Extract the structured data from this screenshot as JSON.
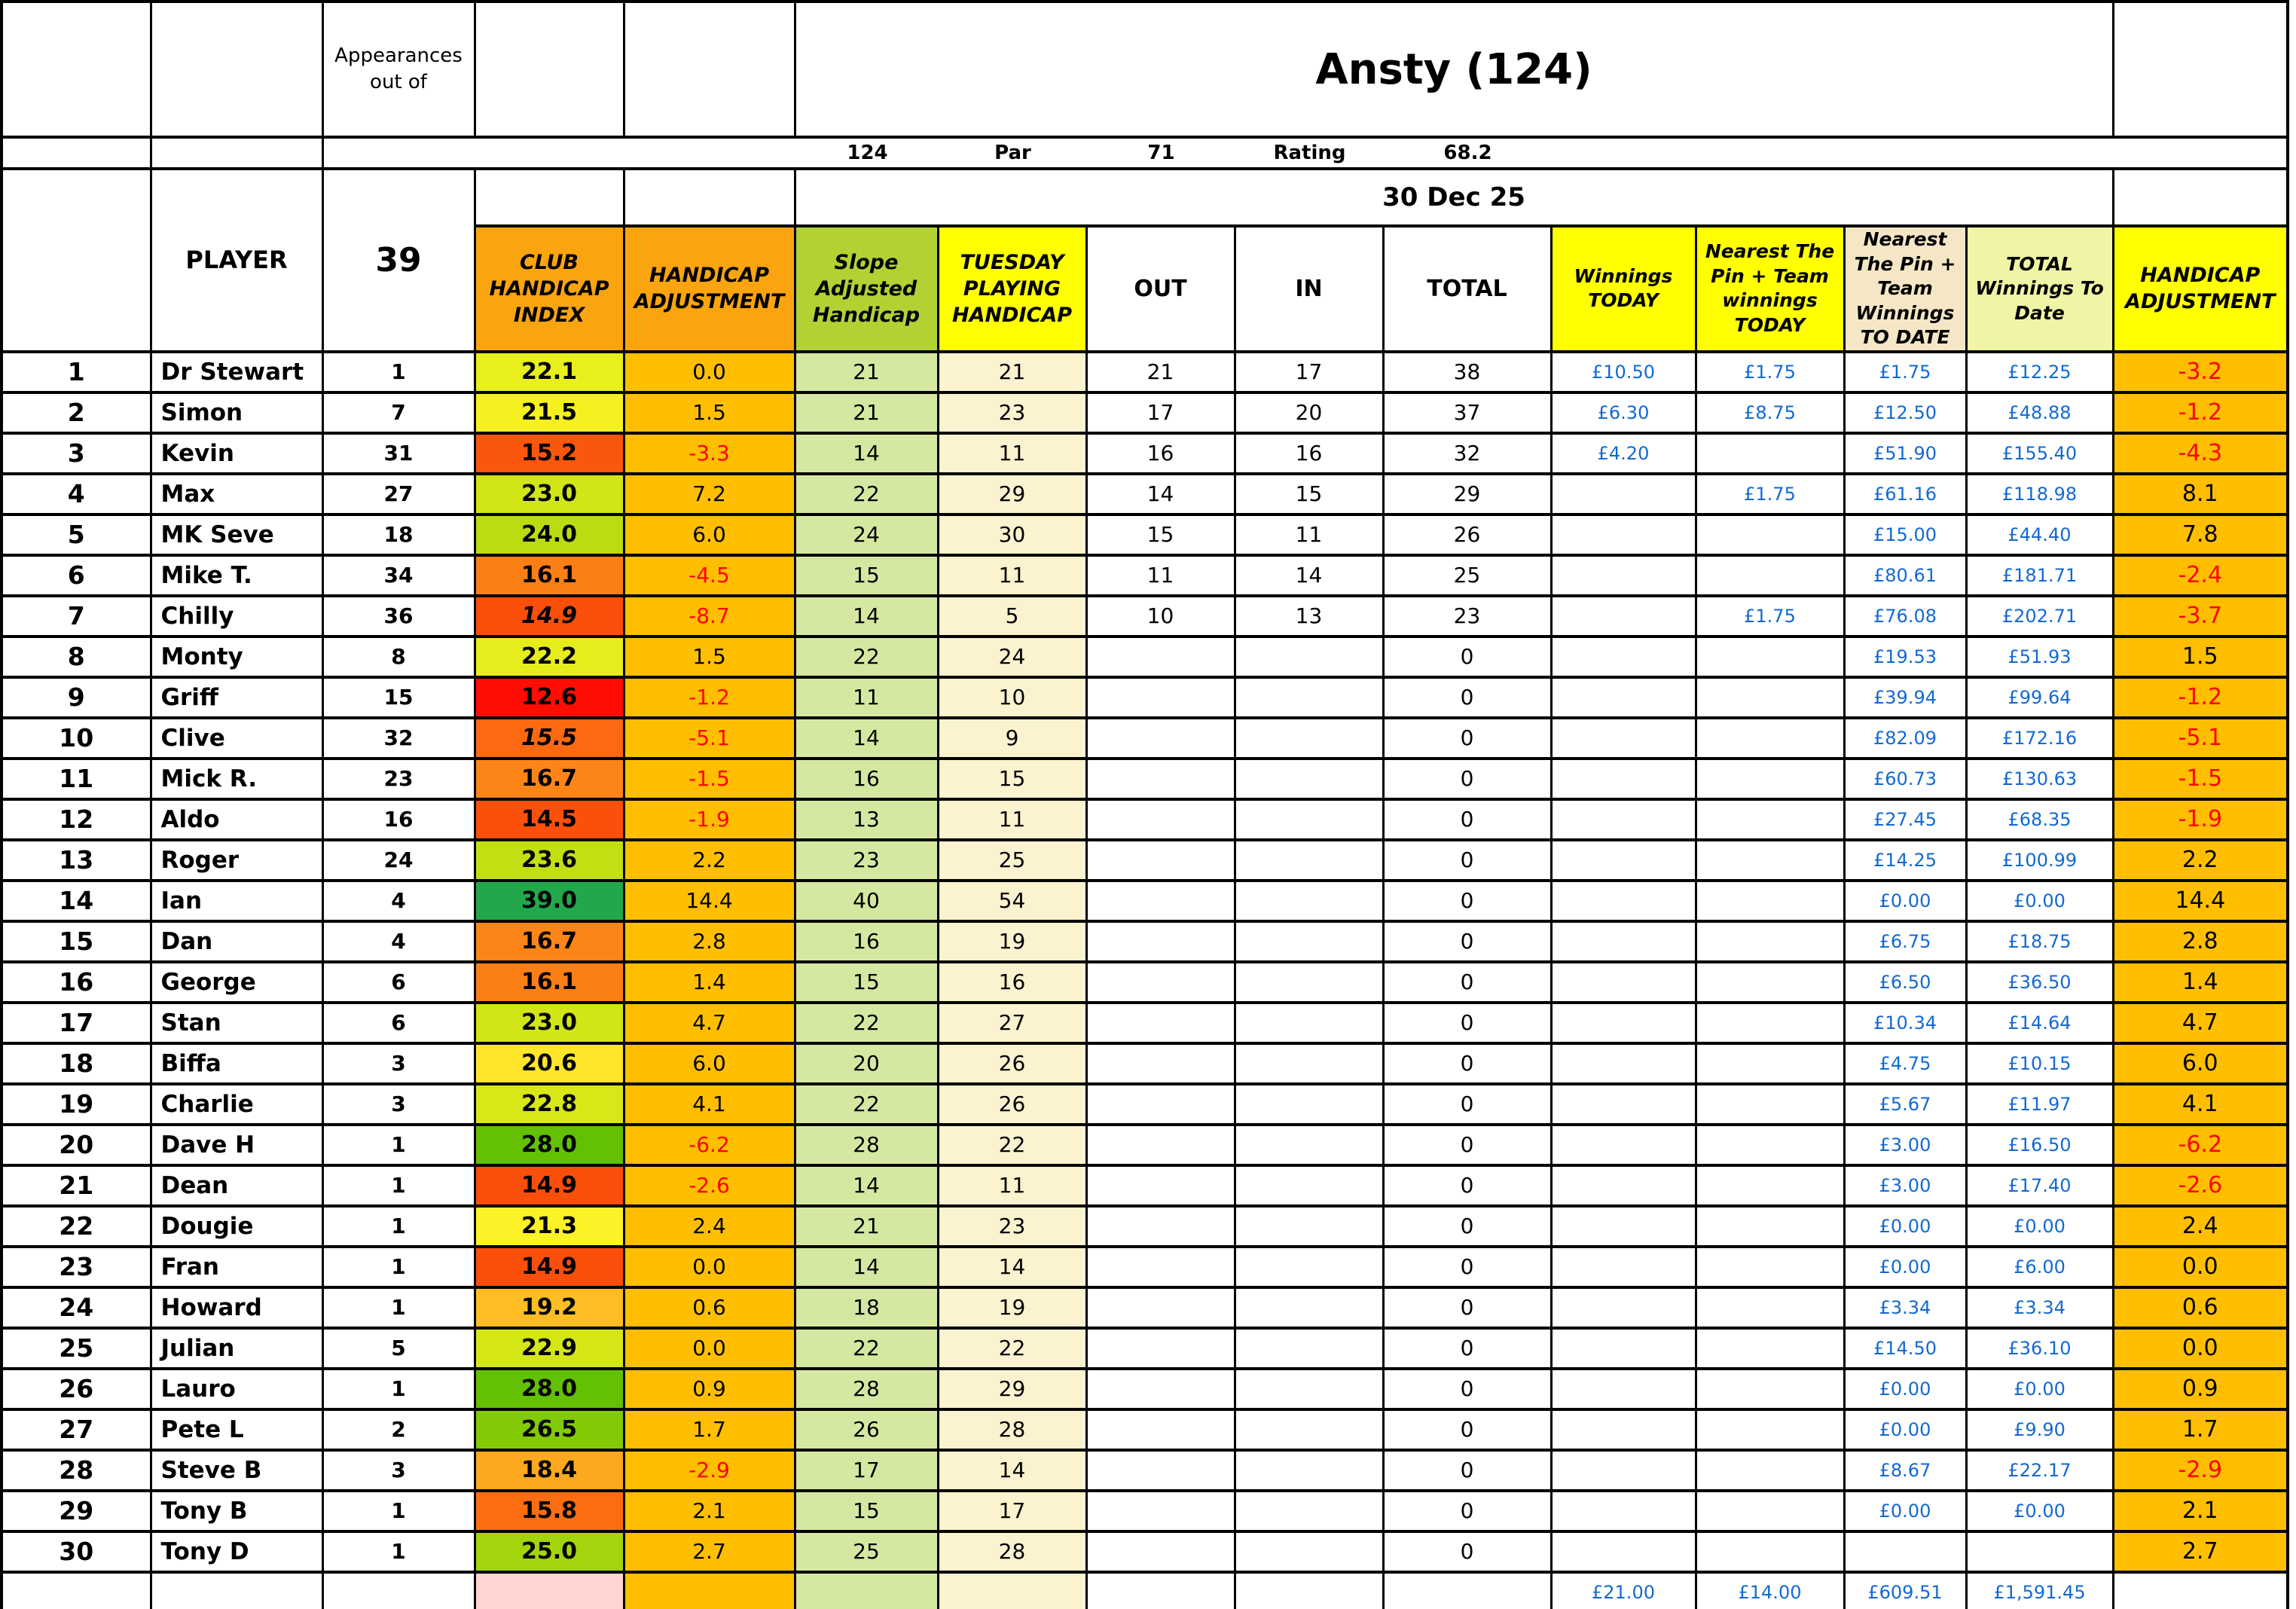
{
  "sheet": {
    "title": "Ansty (124)",
    "date": "30 Dec 25",
    "appearances_label": "Appearances out of",
    "appearances_total": "39",
    "course_info": {
      "slope": "124",
      "par_label": "Par",
      "par": "71",
      "rating_label": "Rating",
      "rating": "68.2"
    }
  },
  "headers": {
    "player": "PLAYER",
    "club_handicap_index": "CLUB HANDICAP INDEX",
    "handicap_adjustment": "HANDICAP ADJUSTMENT",
    "slope_adjusted": "Slope Adjusted Handicap",
    "tuesday_playing": "TUESDAY PLAYING HANDICAP",
    "out": "OUT",
    "in": "IN",
    "total": "TOTAL",
    "winnings_today": "Winnings TODAY",
    "nearest_pin_today": "Nearest The Pin + Team winnings TODAY",
    "nearest_pin_to_date": "Nearest The Pin + Team Winnings TO DATE",
    "total_winnings_to_date": "TOTAL Winnings To Date",
    "handicap_adjustment_cum": "HANDICAP ADJUSTMENT"
  },
  "colors": {
    "money_text": "#1269D3",
    "negative_text": "#FE0000",
    "orange_header": "#FAA50F",
    "gold_cell": "#FFBF00",
    "slope_header": "#B2D234",
    "slope_cell": "#D5E8A2",
    "yellow_header": "#FFFF00",
    "tuesday_cell": "#FBF2CF",
    "wheat_header": "#F5E7C6",
    "pale_yellow_header": "#F0F5A5",
    "pink_cell": "#FFD5D3"
  },
  "players": [
    {
      "no": "1",
      "name": "Dr Stewart",
      "apps": "1",
      "chi": "22.1",
      "chi_color": "#E7EF1D",
      "chi_italic": false,
      "adj_today": "0.0",
      "slope_hcp": "21",
      "tuesday_hcp": "21",
      "out": "21",
      "in": "17",
      "total": "38",
      "win_today": "£10.50",
      "np_today": "£1.75",
      "np_to_date": "£1.75",
      "total_to_date": "£12.25",
      "adj_cum": "-3.2"
    },
    {
      "no": "2",
      "name": "Simon",
      "apps": "7",
      "chi": "21.5",
      "chi_color": "#F5F121",
      "chi_italic": false,
      "adj_today": "1.5",
      "slope_hcp": "21",
      "tuesday_hcp": "23",
      "out": "17",
      "in": "20",
      "total": "37",
      "win_today": "£6.30",
      "np_today": "£8.75",
      "np_to_date": "£12.50",
      "total_to_date": "£48.88",
      "adj_cum": "-1.2"
    },
    {
      "no": "3",
      "name": "Kevin",
      "apps": "31",
      "chi": "15.2",
      "chi_color": "#FB560E",
      "chi_italic": false,
      "adj_today": "-3.3",
      "slope_hcp": "14",
      "tuesday_hcp": "11",
      "out": "16",
      "in": "16",
      "total": "32",
      "win_today": "£4.20",
      "np_today": "",
      "np_to_date": "£51.90",
      "total_to_date": "£155.40",
      "adj_cum": "-4.3"
    },
    {
      "no": "4",
      "name": "Max",
      "apps": "27",
      "chi": "23.0",
      "chi_color": "#D2E517",
      "chi_italic": false,
      "adj_today": "7.2",
      "slope_hcp": "22",
      "tuesday_hcp": "29",
      "out": "14",
      "in": "15",
      "total": "29",
      "win_today": "",
      "np_today": "£1.75",
      "np_to_date": "£61.16",
      "total_to_date": "£118.98",
      "adj_cum": "8.1"
    },
    {
      "no": "5",
      "name": "MK Seve",
      "apps": "18",
      "chi": "24.0",
      "chi_color": "#BBDC10",
      "chi_italic": false,
      "adj_today": "6.0",
      "slope_hcp": "24",
      "tuesday_hcp": "30",
      "out": "15",
      "in": "11",
      "total": "26",
      "win_today": "",
      "np_today": "",
      "np_to_date": "£15.00",
      "total_to_date": "£44.40",
      "adj_cum": "7.8"
    },
    {
      "no": "6",
      "name": "Mike T.",
      "apps": "34",
      "chi": "16.1",
      "chi_color": "#FC7F16",
      "chi_italic": false,
      "adj_today": "-4.5",
      "slope_hcp": "15",
      "tuesday_hcp": "11",
      "out": "11",
      "in": "14",
      "total": "25",
      "win_today": "",
      "np_today": "",
      "np_to_date": "£80.61",
      "total_to_date": "£181.71",
      "adj_cum": "-2.4"
    },
    {
      "no": "7",
      "name": "Chilly",
      "apps": "36",
      "chi": "14.9",
      "chi_color": "#FA4E0B",
      "chi_italic": true,
      "adj_today": "-8.7",
      "slope_hcp": "14",
      "tuesday_hcp": "5",
      "out": "10",
      "in": "13",
      "total": "23",
      "win_today": "",
      "np_today": "£1.75",
      "np_to_date": "£76.08",
      "total_to_date": "£202.71",
      "adj_cum": "-3.7"
    },
    {
      "no": "8",
      "name": "Monty",
      "apps": "8",
      "chi": "22.2",
      "chi_color": "#E5EE1C",
      "chi_italic": false,
      "adj_today": "1.5",
      "slope_hcp": "22",
      "tuesday_hcp": "24",
      "out": "",
      "in": "",
      "total": "0",
      "win_today": "",
      "np_today": "",
      "np_to_date": "£19.53",
      "total_to_date": "£51.93",
      "adj_cum": "1.5"
    },
    {
      "no": "9",
      "name": "Griff",
      "apps": "15",
      "chi": "12.6",
      "chi_color": "#FF0D05",
      "chi_italic": false,
      "adj_today": "-1.2",
      "slope_hcp": "11",
      "tuesday_hcp": "10",
      "out": "",
      "in": "",
      "total": "0",
      "win_today": "",
      "np_today": "",
      "np_to_date": "£39.94",
      "total_to_date": "£99.64",
      "adj_cum": "-1.2"
    },
    {
      "no": "10",
      "name": "Clive",
      "apps": "32",
      "chi": "15.5",
      "chi_color": "#FC6911",
      "chi_italic": true,
      "adj_today": "-5.1",
      "slope_hcp": "14",
      "tuesday_hcp": "9",
      "out": "",
      "in": "",
      "total": "0",
      "win_today": "",
      "np_today": "",
      "np_to_date": "£82.09",
      "total_to_date": "£172.16",
      "adj_cum": "-5.1"
    },
    {
      "no": "11",
      "name": "Mick R.",
      "apps": "23",
      "chi": "16.7",
      "chi_color": "#FD8517",
      "chi_italic": false,
      "adj_today": "-1.5",
      "slope_hcp": "16",
      "tuesday_hcp": "15",
      "out": "",
      "in": "",
      "total": "0",
      "win_today": "",
      "np_today": "",
      "np_to_date": "£60.73",
      "total_to_date": "£130.63",
      "adj_cum": "-1.5"
    },
    {
      "no": "12",
      "name": "Aldo",
      "apps": "16",
      "chi": "14.5",
      "chi_color": "#FB4F0C",
      "chi_italic": false,
      "adj_today": "-1.9",
      "slope_hcp": "13",
      "tuesday_hcp": "11",
      "out": "",
      "in": "",
      "total": "0",
      "win_today": "",
      "np_today": "",
      "np_to_date": "£27.45",
      "total_to_date": "£68.35",
      "adj_cum": "-1.9"
    },
    {
      "no": "13",
      "name": "Roger",
      "apps": "24",
      "chi": "23.6",
      "chi_color": "#C3DF13",
      "chi_italic": false,
      "adj_today": "2.2",
      "slope_hcp": "23",
      "tuesday_hcp": "25",
      "out": "",
      "in": "",
      "total": "0",
      "win_today": "",
      "np_today": "",
      "np_to_date": "£14.25",
      "total_to_date": "£100.99",
      "adj_cum": "2.2"
    },
    {
      "no": "14",
      "name": "Ian",
      "apps": "4",
      "chi": "39.0",
      "chi_color": "#22A84B",
      "chi_italic": false,
      "adj_today": "14.4",
      "slope_hcp": "40",
      "tuesday_hcp": "54",
      "out": "",
      "in": "",
      "total": "0",
      "win_today": "",
      "np_today": "",
      "np_to_date": "£0.00",
      "total_to_date": "£0.00",
      "adj_cum": "14.4"
    },
    {
      "no": "15",
      "name": "Dan",
      "apps": "4",
      "chi": "16.7",
      "chi_color": "#FD8517",
      "chi_italic": false,
      "adj_today": "2.8",
      "slope_hcp": "16",
      "tuesday_hcp": "19",
      "out": "",
      "in": "",
      "total": "0",
      "win_today": "",
      "np_today": "",
      "np_to_date": "£6.75",
      "total_to_date": "£18.75",
      "adj_cum": "2.8"
    },
    {
      "no": "16",
      "name": "George",
      "apps": "6",
      "chi": "16.1",
      "chi_color": "#FC7F16",
      "chi_italic": false,
      "adj_today": "1.4",
      "slope_hcp": "15",
      "tuesday_hcp": "16",
      "out": "",
      "in": "",
      "total": "0",
      "win_today": "",
      "np_today": "",
      "np_to_date": "£6.50",
      "total_to_date": "£36.50",
      "adj_cum": "1.4"
    },
    {
      "no": "17",
      "name": "Stan",
      "apps": "6",
      "chi": "23.0",
      "chi_color": "#D2E517",
      "chi_italic": false,
      "adj_today": "4.7",
      "slope_hcp": "22",
      "tuesday_hcp": "27",
      "out": "",
      "in": "",
      "total": "0",
      "win_today": "",
      "np_today": "",
      "np_to_date": "£10.34",
      "total_to_date": "£14.64",
      "adj_cum": "4.7"
    },
    {
      "no": "18",
      "name": "Biffa",
      "apps": "3",
      "chi": "20.6",
      "chi_color": "#FFE62A",
      "chi_italic": false,
      "adj_today": "6.0",
      "slope_hcp": "20",
      "tuesday_hcp": "26",
      "out": "",
      "in": "",
      "total": "0",
      "win_today": "",
      "np_today": "",
      "np_to_date": "£4.75",
      "total_to_date": "£10.15",
      "adj_cum": "6.0"
    },
    {
      "no": "19",
      "name": "Charlie",
      "apps": "3",
      "chi": "22.8",
      "chi_color": "#D7E718",
      "chi_italic": false,
      "adj_today": "4.1",
      "slope_hcp": "22",
      "tuesday_hcp": "26",
      "out": "",
      "in": "",
      "total": "0",
      "win_today": "",
      "np_today": "",
      "np_to_date": "£5.67",
      "total_to_date": "£11.97",
      "adj_cum": "4.1"
    },
    {
      "no": "20",
      "name": "Dave H",
      "apps": "1",
      "chi": "28.0",
      "chi_color": "#63C002",
      "chi_italic": false,
      "adj_today": "-6.2",
      "slope_hcp": "28",
      "tuesday_hcp": "22",
      "out": "",
      "in": "",
      "total": "0",
      "win_today": "",
      "np_today": "",
      "np_to_date": "£3.00",
      "total_to_date": "£16.50",
      "adj_cum": "-6.2"
    },
    {
      "no": "21",
      "name": "Dean",
      "apps": "1",
      "chi": "14.9",
      "chi_color": "#FA4E0B",
      "chi_italic": false,
      "adj_today": "-2.6",
      "slope_hcp": "14",
      "tuesday_hcp": "11",
      "out": "",
      "in": "",
      "total": "0",
      "win_today": "",
      "np_today": "",
      "np_to_date": "£3.00",
      "total_to_date": "£17.40",
      "adj_cum": "-2.6"
    },
    {
      "no": "22",
      "name": "Dougie",
      "apps": "1",
      "chi": "21.3",
      "chi_color": "#FBF227",
      "chi_italic": false,
      "adj_today": "2.4",
      "slope_hcp": "21",
      "tuesday_hcp": "23",
      "out": "",
      "in": "",
      "total": "0",
      "win_today": "",
      "np_today": "",
      "np_to_date": "£0.00",
      "total_to_date": "£0.00",
      "adj_cum": "2.4"
    },
    {
      "no": "23",
      "name": "Fran",
      "apps": "1",
      "chi": "14.9",
      "chi_color": "#FA4E0B",
      "chi_italic": false,
      "adj_today": "0.0",
      "slope_hcp": "14",
      "tuesday_hcp": "14",
      "out": "",
      "in": "",
      "total": "0",
      "win_today": "",
      "np_today": "",
      "np_to_date": "£0.00",
      "total_to_date": "£6.00",
      "adj_cum": "0.0"
    },
    {
      "no": "24",
      "name": "Howard",
      "apps": "1",
      "chi": "19.2",
      "chi_color": "#FEBE23",
      "chi_italic": false,
      "adj_today": "0.6",
      "slope_hcp": "18",
      "tuesday_hcp": "19",
      "out": "",
      "in": "",
      "total": "0",
      "win_today": "",
      "np_today": "",
      "np_to_date": "£3.34",
      "total_to_date": "£3.34",
      "adj_cum": "0.6"
    },
    {
      "no": "25",
      "name": "Julian",
      "apps": "5",
      "chi": "22.9",
      "chi_color": "#D5E617",
      "chi_italic": false,
      "adj_today": "0.0",
      "slope_hcp": "22",
      "tuesday_hcp": "22",
      "out": "",
      "in": "",
      "total": "0",
      "win_today": "",
      "np_today": "",
      "np_to_date": "£14.50",
      "total_to_date": "£36.10",
      "adj_cum": "0.0"
    },
    {
      "no": "26",
      "name": "Lauro",
      "apps": "1",
      "chi": "28.0",
      "chi_color": "#63C002",
      "chi_italic": false,
      "adj_today": "0.9",
      "slope_hcp": "28",
      "tuesday_hcp": "29",
      "out": "",
      "in": "",
      "total": "0",
      "win_today": "",
      "np_today": "",
      "np_to_date": "£0.00",
      "total_to_date": "£0.00",
      "adj_cum": "0.9"
    },
    {
      "no": "27",
      "name": "Pete L",
      "apps": "2",
      "chi": "26.5",
      "chi_color": "#82CA06",
      "chi_italic": false,
      "adj_today": "1.7",
      "slope_hcp": "26",
      "tuesday_hcp": "28",
      "out": "",
      "in": "",
      "total": "0",
      "win_today": "",
      "np_today": "",
      "np_to_date": "£0.00",
      "total_to_date": "£9.90",
      "adj_cum": "1.7"
    },
    {
      "no": "28",
      "name": "Steve B",
      "apps": "3",
      "chi": "18.4",
      "chi_color": "#FDA81E",
      "chi_italic": false,
      "adj_today": "-2.9",
      "slope_hcp": "17",
      "tuesday_hcp": "14",
      "out": "",
      "in": "",
      "total": "0",
      "win_today": "",
      "np_today": "",
      "np_to_date": "£8.67",
      "total_to_date": "£22.17",
      "adj_cum": "-2.9"
    },
    {
      "no": "29",
      "name": "Tony B",
      "apps": "1",
      "chi": "15.8",
      "chi_color": "#FC6D12",
      "chi_italic": false,
      "adj_today": "2.1",
      "slope_hcp": "15",
      "tuesday_hcp": "17",
      "out": "",
      "in": "",
      "total": "0",
      "win_today": "",
      "np_today": "",
      "np_to_date": "£0.00",
      "total_to_date": "£0.00",
      "adj_cum": "2.1"
    },
    {
      "no": "30",
      "name": "Tony D",
      "apps": "1",
      "chi": "25.0",
      "chi_color": "#A3D50C",
      "chi_italic": false,
      "adj_today": "2.7",
      "slope_hcp": "25",
      "tuesday_hcp": "28",
      "out": "",
      "in": "",
      "total": "0",
      "win_today": "",
      "np_today": "",
      "np_to_date": "",
      "total_to_date": "",
      "adj_cum": "2.7"
    }
  ],
  "totals": {
    "win_today": "£21.00",
    "np_today": "£14.00",
    "np_to_date": "£609.51",
    "total_to_date": "£1,591.45"
  }
}
